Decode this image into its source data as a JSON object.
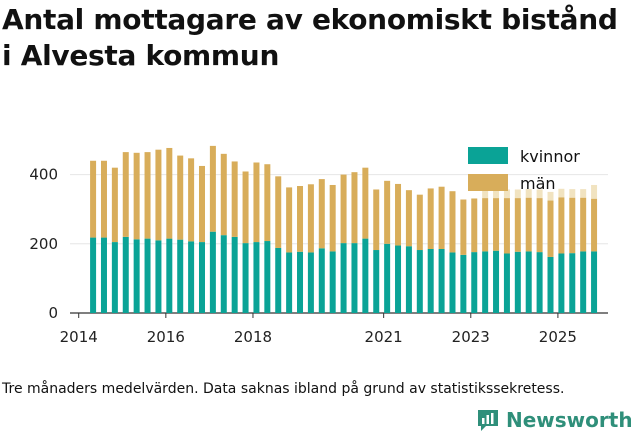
{
  "title": "Antal mottagare av ekonomiskt bistånd i Alvesta kommun",
  "footnote": "Tre månaders medelvärden. Data saknas ibland på grund av statistikssekretess.",
  "brand": "Newsworthy",
  "colors": {
    "kvinnor": "#0aa396",
    "man": "#d8ad5a",
    "man_faded": "#f1e3c0",
    "kvinnor_faded": "#c8ece8",
    "brand": "#2f8f7a"
  },
  "chart_data": {
    "type": "bar",
    "stacked": true,
    "title": "Antal mottagare av ekonomiskt bistånd i Alvesta kommun",
    "xlabel": "",
    "ylabel": "",
    "ylim": [
      0,
      500
    ],
    "xlim": [
      2013.8,
      2026.15
    ],
    "y_ticks": [
      "0",
      "200",
      "400"
    ],
    "x_ticks": [
      "2014",
      "2016",
      "2018",
      "2021",
      "2023",
      "2025"
    ],
    "x_tick_values": [
      2014.0,
      2016.0,
      2018.0,
      2021.0,
      2023.0,
      2025.0
    ],
    "legend": {
      "position": "top-right",
      "entries": [
        "kvinnor",
        "män"
      ]
    },
    "series": [
      {
        "name": "kvinnor",
        "x": [
          2014.33,
          2014.58,
          2014.83,
          2015.08,
          2015.33,
          2015.58,
          2015.83,
          2016.08,
          2016.33,
          2016.58,
          2016.83,
          2017.08,
          2017.33,
          2017.58,
          2017.83,
          2018.08,
          2018.33,
          2018.58,
          2018.83,
          2019.08,
          2019.33,
          2019.58,
          2019.83,
          2020.08,
          2020.33,
          2020.58,
          2020.83,
          2021.08,
          2021.33,
          2021.58,
          2021.83,
          2022.08,
          2022.33,
          2022.58,
          2022.83,
          2023.08,
          2023.33,
          2023.58,
          2023.83,
          2024.08,
          2024.33,
          2024.58,
          2024.83,
          2025.08,
          2025.33,
          2025.58,
          2025.83
        ],
        "values": [
          218,
          218,
          205,
          220,
          213,
          215,
          210,
          215,
          212,
          207,
          205,
          235,
          225,
          220,
          202,
          205,
          208,
          188,
          175,
          177,
          175,
          187,
          178,
          202,
          202,
          215,
          182,
          200,
          195,
          193,
          182,
          185,
          185,
          175,
          168,
          176,
          178,
          180,
          172,
          177,
          178,
          176,
          162,
          172,
          173,
          178,
          178
        ],
        "faded": [
          false,
          false,
          false,
          false,
          false,
          false,
          false,
          false,
          false,
          false,
          false,
          false,
          false,
          false,
          false,
          false,
          false,
          false,
          false,
          false,
          false,
          false,
          false,
          false,
          false,
          false,
          false,
          false,
          false,
          false,
          false,
          false,
          false,
          false,
          false,
          false,
          false,
          false,
          false,
          false,
          false,
          false,
          false,
          false,
          false,
          false,
          false
        ]
      },
      {
        "name": "män",
        "x": [
          2014.33,
          2014.58,
          2014.83,
          2015.08,
          2015.33,
          2015.58,
          2015.83,
          2016.08,
          2016.33,
          2016.58,
          2016.83,
          2017.08,
          2017.33,
          2017.58,
          2017.83,
          2018.08,
          2018.33,
          2018.58,
          2018.83,
          2019.08,
          2019.33,
          2019.58,
          2019.83,
          2020.08,
          2020.33,
          2020.58,
          2020.83,
          2021.08,
          2021.33,
          2021.58,
          2021.83,
          2022.08,
          2022.33,
          2022.58,
          2022.83,
          2023.08,
          2023.33,
          2023.58,
          2023.83,
          2024.08,
          2024.33,
          2024.58,
          2024.83,
          2025.08,
          2025.33,
          2025.58,
          2025.83
        ],
        "values": [
          222,
          222,
          215,
          245,
          250,
          250,
          262,
          262,
          243,
          240,
          220,
          248,
          235,
          218,
          207,
          230,
          222,
          207,
          188,
          190,
          197,
          200,
          192,
          198,
          205,
          205,
          175,
          182,
          178,
          162,
          160,
          175,
          180,
          177,
          160,
          155,
          154,
          152,
          160,
          155,
          155,
          156,
          163,
          162,
          160,
          155,
          152
        ],
        "faded_extra": [
          0,
          0,
          0,
          0,
          0,
          0,
          0,
          0,
          0,
          0,
          0,
          0,
          0,
          0,
          0,
          0,
          0,
          0,
          0,
          0,
          0,
          0,
          0,
          0,
          0,
          0,
          0,
          0,
          0,
          0,
          0,
          0,
          0,
          0,
          0,
          0,
          25,
          25,
          25,
          25,
          25,
          25,
          25,
          25,
          25,
          25,
          40
        ]
      }
    ]
  }
}
